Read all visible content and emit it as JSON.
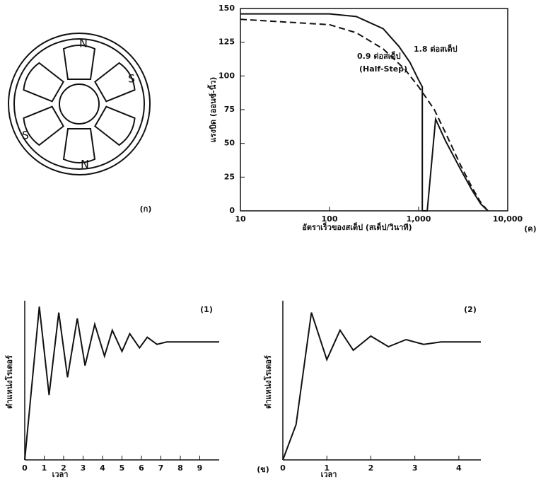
{
  "figure": {
    "poles": [
      "N",
      "S",
      "S",
      "N"
    ],
    "caption": "(ก)"
  },
  "caption": "(ข)",
  "chart_data": [
    {
      "type": "line",
      "caption": "(ค)",
      "ylabel": "แรงบิด (ออนซ์-นิ้ว)",
      "xlabel": "อัตราเร็วของสเต็ป (สเต็ป/วินาที)",
      "xscale": "log",
      "frame": true,
      "xlim": [
        10,
        10000
      ],
      "xticks": [
        10,
        100,
        {
          "value": 1000,
          "label": "1,000"
        },
        {
          "value": 10000,
          "label": "10,000"
        }
      ],
      "ylim": [
        0,
        150
      ],
      "yticks": [
        0,
        25,
        50,
        75,
        100,
        125,
        150
      ],
      "annotations": [
        "1.8 ต่อสเต็ป",
        "0.9 ต่อสเต็ป",
        "(Half-Step)"
      ],
      "series": [
        {
          "name": "1.8 ต่อสเต็ป",
          "color": "#111",
          "linestyle": "solid",
          "x": [
            10,
            100,
            200,
            400,
            600,
            800,
            1000,
            1100,
            1100,
            1250,
            1550,
            2000,
            3000,
            4000,
            5000,
            6000
          ],
          "values": [
            146,
            146,
            144,
            135,
            122,
            110,
            97,
            92,
            0,
            0,
            68,
            52,
            30,
            15,
            5,
            0
          ]
        },
        {
          "name": "0.9 ต่อสเต็ป",
          "color": "#111",
          "linestyle": "dashed",
          "x": [
            10,
            100,
            200,
            400,
            700,
            1000,
            1500,
            2000,
            3000,
            4000,
            5000,
            6000
          ],
          "values": [
            142,
            138,
            132,
            120,
            105,
            92,
            75,
            58,
            33,
            17,
            6,
            0
          ]
        }
      ]
    },
    {
      "type": "line",
      "caption": "(1)",
      "ylabel": "ตำแหน่งโรเตอร์",
      "xlabel": "เวลา",
      "xlim": [
        0,
        10
      ],
      "xticks": [
        0,
        1,
        2,
        3,
        4,
        5,
        6,
        7,
        8,
        9
      ],
      "ylim": [
        0,
        1.35
      ],
      "series": [
        {
          "color": "#111",
          "linestyle": "solid",
          "x": [
            0,
            0.75,
            1.25,
            1.75,
            2.2,
            2.7,
            3.1,
            3.6,
            4.1,
            4.5,
            5.0,
            5.4,
            5.9,
            6.3,
            6.8,
            7.3,
            10
          ],
          "values": [
            0,
            1.3,
            0.55,
            1.25,
            0.7,
            1.2,
            0.8,
            1.15,
            0.88,
            1.1,
            0.92,
            1.07,
            0.95,
            1.04,
            0.98,
            1.0,
            1.0
          ]
        }
      ]
    },
    {
      "type": "line",
      "caption": "(2)",
      "ylabel": "ตำแหน่งโรเตอร์",
      "xlabel": "เวลา",
      "xlim": [
        0,
        4.5
      ],
      "xticks": [
        0,
        1,
        2,
        3,
        4
      ],
      "ylim": [
        0,
        1.35
      ],
      "series": [
        {
          "color": "#111",
          "linestyle": "solid",
          "x": [
            0,
            0.3,
            0.65,
            1.0,
            1.3,
            1.6,
            2.0,
            2.4,
            2.8,
            3.2,
            3.6,
            4.5
          ],
          "values": [
            0,
            0.3,
            1.25,
            0.85,
            1.1,
            0.93,
            1.05,
            0.96,
            1.02,
            0.98,
            1.0,
            1.0
          ]
        }
      ]
    }
  ]
}
